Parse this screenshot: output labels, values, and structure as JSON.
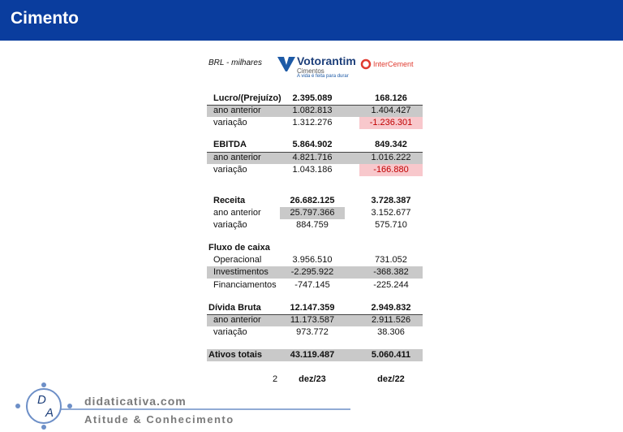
{
  "header": {
    "title": "Cimento"
  },
  "table": {
    "unit": "BRL - milhares",
    "logos": {
      "votorantim": {
        "name": "Votorantim",
        "sub": "Cimentos",
        "tagline": "A vida é feita para durar"
      },
      "intercement": {
        "name": "InterCement"
      }
    },
    "rows": [
      {
        "label": "Lucro/(Prejuízo)",
        "values": [
          "2.395.089",
          "168.126"
        ]
      },
      {
        "label": "ano anterior",
        "values": [
          "1.082.813",
          "1.404.427"
        ]
      },
      {
        "label": "variação",
        "values": [
          "1.312.276",
          "-1.236.301"
        ]
      },
      {
        "label": "EBITDA",
        "values": [
          "5.864.902",
          "849.342"
        ]
      },
      {
        "label": "ano anterior",
        "values": [
          "4.821.716",
          "1.016.222"
        ]
      },
      {
        "label": "variação",
        "values": [
          "1.043.186",
          "-166.880"
        ]
      },
      {
        "label": "Receita",
        "values": [
          "26.682.125",
          "3.728.387"
        ]
      },
      {
        "label": "ano anterior",
        "values": [
          "25.797.366",
          "3.152.677"
        ]
      },
      {
        "label": "variação",
        "values": [
          "884.759",
          "575.710"
        ]
      },
      {
        "label": "Fluxo de caixa"
      },
      {
        "label": "Operacional",
        "values": [
          "3.956.510",
          "731.052"
        ]
      },
      {
        "label": "Investimentos",
        "values": [
          "-2.295.922",
          "-368.382"
        ]
      },
      {
        "label": "Financiamentos",
        "values": [
          "-747.145",
          "-225.244"
        ]
      },
      {
        "label": "Dívida Bruta",
        "values": [
          "12.147.359",
          "2.949.832"
        ]
      },
      {
        "label": "ano anterior",
        "values": [
          "11.173.587",
          "2.911.526"
        ]
      },
      {
        "label": "variação",
        "values": [
          "973.772",
          "38.306"
        ]
      },
      {
        "label": "Ativos totais",
        "values": [
          "43.119.487",
          "5.060.411"
        ]
      }
    ],
    "page_number": "2",
    "periods": [
      "dez/23",
      "dez/22"
    ]
  },
  "footer": {
    "logo_letters": [
      "D",
      "A"
    ],
    "site": "didaticativa.com",
    "slogan": "Atitude & Conhecimento"
  }
}
